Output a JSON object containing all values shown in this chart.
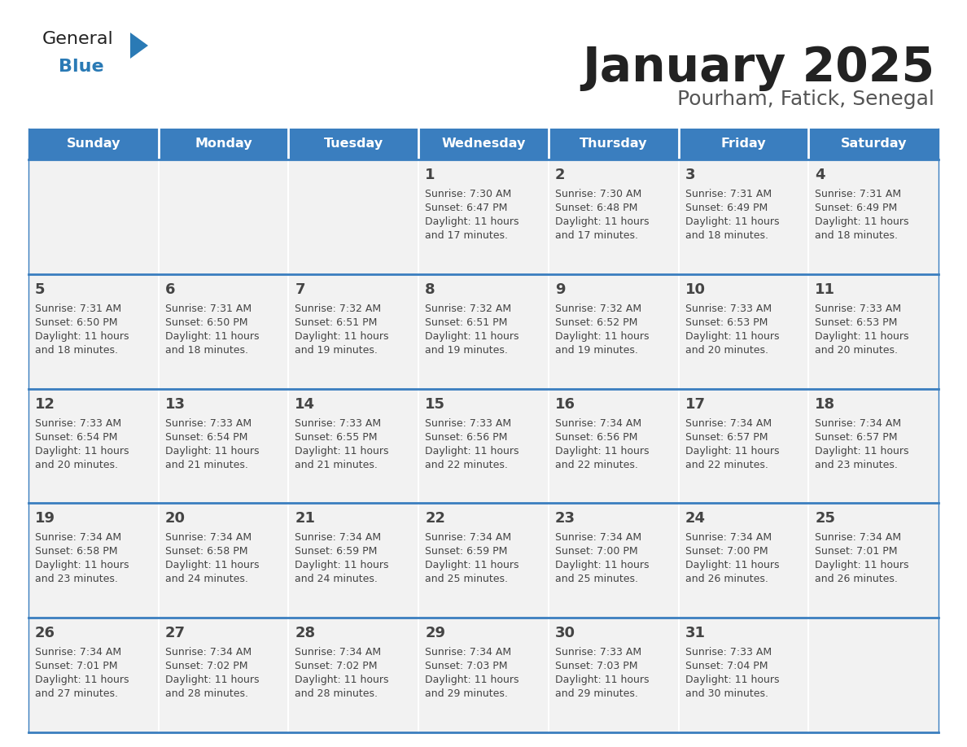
{
  "title": "January 2025",
  "subtitle": "Pourham, Fatick, Senegal",
  "days_of_week": [
    "Sunday",
    "Monday",
    "Tuesday",
    "Wednesday",
    "Thursday",
    "Friday",
    "Saturday"
  ],
  "header_bg": "#3a7ebf",
  "header_text": "#ffffff",
  "cell_bg": "#f2f2f2",
  "line_color": "#3a7ebf",
  "text_color": "#444444",
  "title_color": "#222222",
  "subtitle_color": "#555555",
  "calendar_data": [
    [
      null,
      null,
      null,
      {
        "day": "1",
        "sunrise": "7:30 AM",
        "sunset": "6:47 PM",
        "dl_hours": "11 hours",
        "dl_mins": "and 17 minutes."
      },
      {
        "day": "2",
        "sunrise": "7:30 AM",
        "sunset": "6:48 PM",
        "dl_hours": "11 hours",
        "dl_mins": "and 17 minutes."
      },
      {
        "day": "3",
        "sunrise": "7:31 AM",
        "sunset": "6:49 PM",
        "dl_hours": "11 hours",
        "dl_mins": "and 18 minutes."
      },
      {
        "day": "4",
        "sunrise": "7:31 AM",
        "sunset": "6:49 PM",
        "dl_hours": "11 hours",
        "dl_mins": "and 18 minutes."
      }
    ],
    [
      {
        "day": "5",
        "sunrise": "7:31 AM",
        "sunset": "6:50 PM",
        "dl_hours": "11 hours",
        "dl_mins": "and 18 minutes."
      },
      {
        "day": "6",
        "sunrise": "7:31 AM",
        "sunset": "6:50 PM",
        "dl_hours": "11 hours",
        "dl_mins": "and 18 minutes."
      },
      {
        "day": "7",
        "sunrise": "7:32 AM",
        "sunset": "6:51 PM",
        "dl_hours": "11 hours",
        "dl_mins": "and 19 minutes."
      },
      {
        "day": "8",
        "sunrise": "7:32 AM",
        "sunset": "6:51 PM",
        "dl_hours": "11 hours",
        "dl_mins": "and 19 minutes."
      },
      {
        "day": "9",
        "sunrise": "7:32 AM",
        "sunset": "6:52 PM",
        "dl_hours": "11 hours",
        "dl_mins": "and 19 minutes."
      },
      {
        "day": "10",
        "sunrise": "7:33 AM",
        "sunset": "6:53 PM",
        "dl_hours": "11 hours",
        "dl_mins": "and 20 minutes."
      },
      {
        "day": "11",
        "sunrise": "7:33 AM",
        "sunset": "6:53 PM",
        "dl_hours": "11 hours",
        "dl_mins": "and 20 minutes."
      }
    ],
    [
      {
        "day": "12",
        "sunrise": "7:33 AM",
        "sunset": "6:54 PM",
        "dl_hours": "11 hours",
        "dl_mins": "and 20 minutes."
      },
      {
        "day": "13",
        "sunrise": "7:33 AM",
        "sunset": "6:54 PM",
        "dl_hours": "11 hours",
        "dl_mins": "and 21 minutes."
      },
      {
        "day": "14",
        "sunrise": "7:33 AM",
        "sunset": "6:55 PM",
        "dl_hours": "11 hours",
        "dl_mins": "and 21 minutes."
      },
      {
        "day": "15",
        "sunrise": "7:33 AM",
        "sunset": "6:56 PM",
        "dl_hours": "11 hours",
        "dl_mins": "and 22 minutes."
      },
      {
        "day": "16",
        "sunrise": "7:34 AM",
        "sunset": "6:56 PM",
        "dl_hours": "11 hours",
        "dl_mins": "and 22 minutes."
      },
      {
        "day": "17",
        "sunrise": "7:34 AM",
        "sunset": "6:57 PM",
        "dl_hours": "11 hours",
        "dl_mins": "and 22 minutes."
      },
      {
        "day": "18",
        "sunrise": "7:34 AM",
        "sunset": "6:57 PM",
        "dl_hours": "11 hours",
        "dl_mins": "and 23 minutes."
      }
    ],
    [
      {
        "day": "19",
        "sunrise": "7:34 AM",
        "sunset": "6:58 PM",
        "dl_hours": "11 hours",
        "dl_mins": "and 23 minutes."
      },
      {
        "day": "20",
        "sunrise": "7:34 AM",
        "sunset": "6:58 PM",
        "dl_hours": "11 hours",
        "dl_mins": "and 24 minutes."
      },
      {
        "day": "21",
        "sunrise": "7:34 AM",
        "sunset": "6:59 PM",
        "dl_hours": "11 hours",
        "dl_mins": "and 24 minutes."
      },
      {
        "day": "22",
        "sunrise": "7:34 AM",
        "sunset": "6:59 PM",
        "dl_hours": "11 hours",
        "dl_mins": "and 25 minutes."
      },
      {
        "day": "23",
        "sunrise": "7:34 AM",
        "sunset": "7:00 PM",
        "dl_hours": "11 hours",
        "dl_mins": "and 25 minutes."
      },
      {
        "day": "24",
        "sunrise": "7:34 AM",
        "sunset": "7:00 PM",
        "dl_hours": "11 hours",
        "dl_mins": "and 26 minutes."
      },
      {
        "day": "25",
        "sunrise": "7:34 AM",
        "sunset": "7:01 PM",
        "dl_hours": "11 hours",
        "dl_mins": "and 26 minutes."
      }
    ],
    [
      {
        "day": "26",
        "sunrise": "7:34 AM",
        "sunset": "7:01 PM",
        "dl_hours": "11 hours",
        "dl_mins": "and 27 minutes."
      },
      {
        "day": "27",
        "sunrise": "7:34 AM",
        "sunset": "7:02 PM",
        "dl_hours": "11 hours",
        "dl_mins": "and 28 minutes."
      },
      {
        "day": "28",
        "sunrise": "7:34 AM",
        "sunset": "7:02 PM",
        "dl_hours": "11 hours",
        "dl_mins": "and 28 minutes."
      },
      {
        "day": "29",
        "sunrise": "7:34 AM",
        "sunset": "7:03 PM",
        "dl_hours": "11 hours",
        "dl_mins": "and 29 minutes."
      },
      {
        "day": "30",
        "sunrise": "7:33 AM",
        "sunset": "7:03 PM",
        "dl_hours": "11 hours",
        "dl_mins": "and 29 minutes."
      },
      {
        "day": "31",
        "sunrise": "7:33 AM",
        "sunset": "7:04 PM",
        "dl_hours": "11 hours",
        "dl_mins": "and 30 minutes."
      },
      null
    ]
  ],
  "logo_general_color": "#222222",
  "logo_blue_color": "#2a7ab5",
  "logo_triangle_color": "#2a7ab5"
}
